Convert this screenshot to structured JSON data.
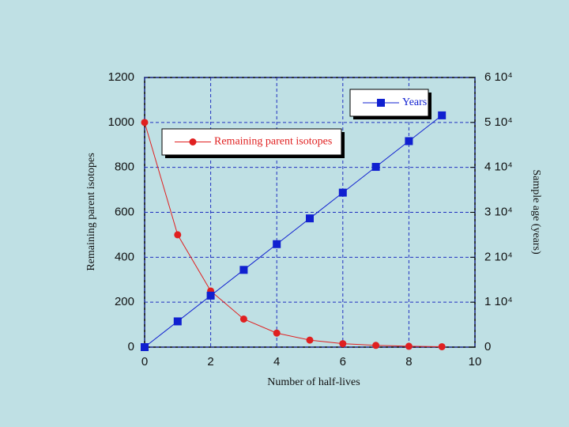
{
  "chart_data": {
    "type": "line",
    "x": [
      0,
      1,
      2,
      3,
      4,
      5,
      6,
      7,
      8,
      9
    ],
    "xlabel": "Number of half-lives",
    "ylabel": "Remaining parent isotopes",
    "y2label": "Sample age (years)",
    "xlim": [
      0,
      10
    ],
    "xticks": [
      0,
      2,
      4,
      6,
      8,
      10
    ],
    "ylim": [
      0,
      1200
    ],
    "yticks": [
      0,
      200,
      400,
      600,
      800,
      1000,
      1200
    ],
    "y2lim": [
      0,
      60000
    ],
    "y2ticks": [
      0,
      {
        "value": 10000,
        "label": "1 10⁴"
      },
      {
        "value": 20000,
        "label": "2 10⁴"
      },
      {
        "value": 30000,
        "label": "3 10⁴"
      },
      {
        "value": 40000,
        "label": "4 10⁴"
      },
      {
        "value": 50000,
        "label": "5 10⁴"
      },
      {
        "value": 60000,
        "label": "6 10⁴"
      }
    ],
    "grid": true,
    "series": [
      {
        "name": "Remaining parent isotopes",
        "color": "#e02020",
        "marker": "circle",
        "values": [
          1000,
          500,
          250,
          125,
          62.5,
          31.25,
          15.6,
          7.8,
          3.9,
          1.95
        ]
      },
      {
        "name": "Years",
        "color": "#1020d0",
        "marker": "square",
        "axis": "y2",
        "values": [
          0,
          5730,
          11460,
          17190,
          22920,
          28650,
          34380,
          40110,
          45840,
          51570
        ]
      }
    ]
  }
}
